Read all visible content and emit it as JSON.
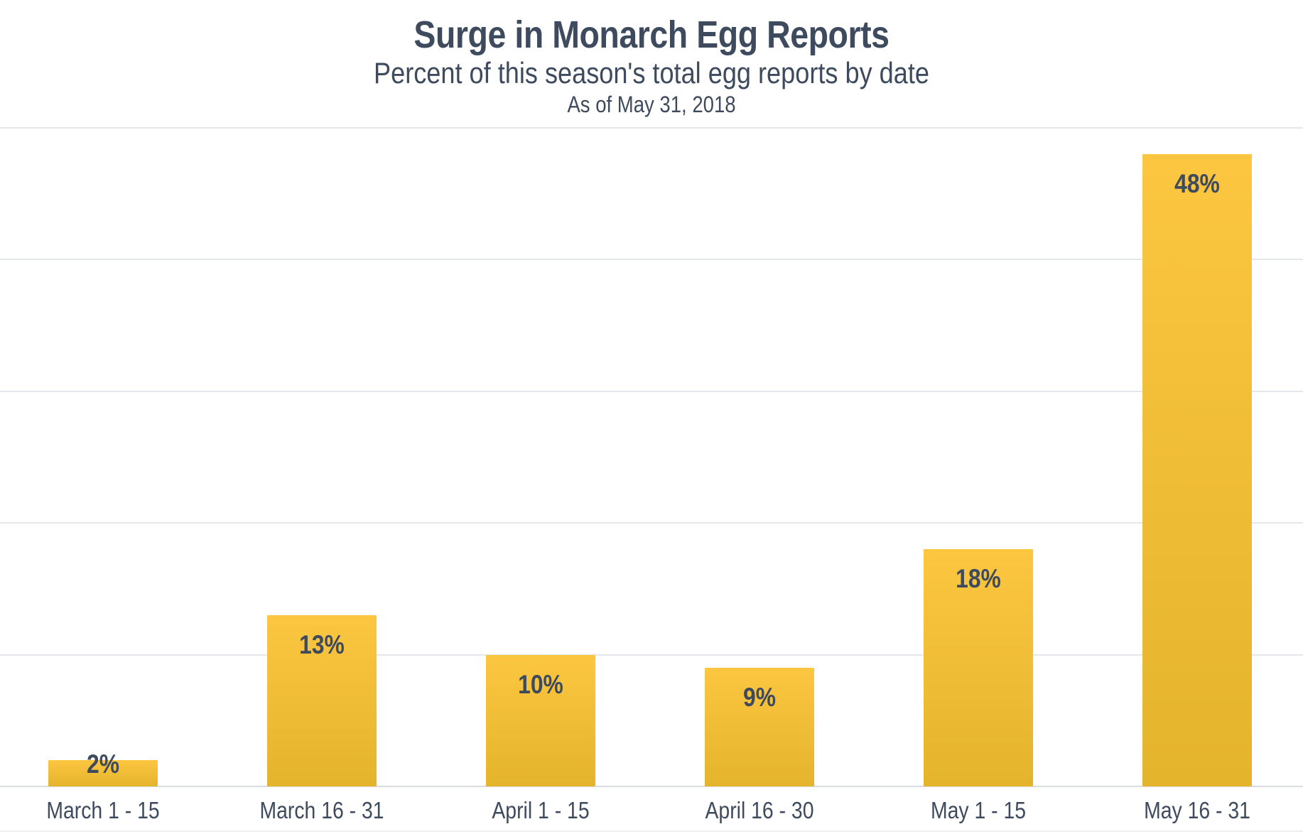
{
  "chart_data": {
    "type": "bar",
    "title": "Surge in Monarch Egg Reports",
    "subtitle": "Percent of this season's total egg reports by date",
    "as_of": "As of May 31, 2018",
    "categories": [
      "March 1 - 15",
      "March 16 - 31",
      "April 1 - 15",
      "April 16 - 30",
      "May 1 - 15",
      "May 16 - 31"
    ],
    "values": [
      2,
      13,
      10,
      9,
      18,
      48
    ],
    "value_labels": [
      "2%",
      "13%",
      "10%",
      "9%",
      "18%",
      "48%"
    ],
    "xlabel": "",
    "ylabel": "",
    "ylim": [
      0,
      50
    ],
    "gridline_step": 10,
    "grid": "horizontal-only",
    "legend": "none",
    "colors": {
      "background": "#ffffff",
      "text": "#3e4a5e",
      "bar_top": "#fcc640",
      "bar_bottom": "#e4b42c",
      "gridline": "#e4e7eb",
      "baseline": "#d9dce0",
      "bottom_rule": "#eceef2"
    }
  }
}
